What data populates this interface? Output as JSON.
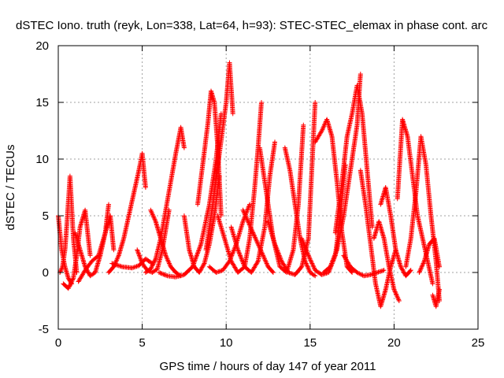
{
  "chart_data": {
    "type": "scatter",
    "title": "dSTEC Iono. truth (reyk, Lon=338, Lat=64, h=93): STEC-STEC_elemax in phase cont. arc",
    "xlabel": "GPS time / hours of day 147 of year 2011",
    "ylabel": "dSTEC  / TECUs",
    "xlim": [
      0,
      25
    ],
    "ylim": [
      -5,
      20
    ],
    "xticks": [
      "0",
      "5",
      "10",
      "15",
      "20",
      "25"
    ],
    "yticks": [
      "-5",
      "0",
      "5",
      "10",
      "15",
      "20"
    ],
    "grid": true,
    "marker": "+",
    "color": "#ff0000",
    "series": [
      {
        "x": [
          0.0,
          0.2,
          0.4,
          0.6,
          0.8
        ],
        "y": [
          5.0,
          2.0,
          0.5,
          -0.5,
          -1.0
        ]
      },
      {
        "x": [
          0.1,
          0.25,
          0.4,
          0.5,
          0.7,
          0.9,
          1.1
        ],
        "y": [
          0.0,
          0.5,
          2.0,
          4.0,
          8.5,
          3.0,
          0.0
        ]
      },
      {
        "x": [
          0.3,
          0.6,
          0.9,
          1.1,
          1.3,
          1.6,
          1.9
        ],
        "y": [
          -1.0,
          -1.4,
          -0.5,
          1.5,
          4.0,
          5.5,
          1.5
        ]
      },
      {
        "x": [
          1.0,
          1.3,
          1.6,
          1.9,
          2.2,
          2.5,
          2.8,
          3.0
        ],
        "y": [
          3.5,
          2.0,
          0.5,
          -0.3,
          0.0,
          1.5,
          3.5,
          6.0
        ]
      },
      {
        "x": [
          1.2,
          1.6,
          2.0,
          2.4,
          2.8,
          3.1,
          3.3
        ],
        "y": [
          -0.8,
          0.2,
          1.0,
          1.5,
          3.5,
          5.0,
          2.0
        ]
      },
      {
        "x": [
          3.0,
          3.3,
          3.6,
          3.9,
          4.2,
          4.5,
          4.8,
          5.0,
          5.2
        ],
        "y": [
          0.0,
          0.5,
          1.5,
          3.0,
          5.0,
          7.0,
          9.0,
          10.5,
          7.5
        ]
      },
      {
        "x": [
          3.2,
          3.8,
          4.4,
          4.8,
          5.2,
          5.6
        ],
        "y": [
          0.8,
          0.5,
          0.4,
          0.6,
          1.2,
          0.8
        ]
      },
      {
        "x": [
          4.7,
          5.0,
          5.3,
          5.6,
          5.9,
          6.2,
          6.6
        ],
        "y": [
          2.0,
          0.8,
          0.2,
          0.0,
          0.3,
          2.0,
          5.5
        ]
      },
      {
        "x": [
          5.2,
          5.5,
          5.8,
          6.1,
          6.4,
          6.7,
          7.0,
          7.3,
          7.5
        ],
        "y": [
          0.0,
          0.3,
          1.2,
          3.0,
          5.5,
          8.0,
          10.5,
          12.8,
          11.0
        ]
      },
      {
        "x": [
          5.5,
          5.8,
          6.1,
          6.4,
          6.7,
          7.0,
          7.3
        ],
        "y": [
          5.5,
          4.5,
          3.0,
          1.5,
          0.5,
          0.0,
          -0.3
        ]
      },
      {
        "x": [
          6.0,
          6.5,
          7.0,
          7.5,
          8.0,
          8.5,
          9.0,
          9.4,
          9.7
        ],
        "y": [
          0.0,
          -0.3,
          -0.4,
          -0.2,
          0.5,
          2.5,
          6.0,
          10.0,
          14.0
        ]
      },
      {
        "x": [
          7.5,
          7.8,
          8.1,
          8.4,
          8.7,
          9.0,
          9.3,
          9.6
        ],
        "y": [
          5.0,
          2.0,
          0.5,
          0.0,
          0.8,
          2.5,
          5.0,
          8.5
        ]
      },
      {
        "x": [
          8.3,
          8.6,
          8.9,
          9.1,
          9.3,
          9.5,
          9.7
        ],
        "y": [
          6.0,
          9.5,
          13.0,
          16.0,
          15.0,
          11.0,
          5.0
        ]
      },
      {
        "x": [
          8.8,
          9.2,
          9.6,
          10.0,
          10.2,
          10.4
        ],
        "y": [
          2.0,
          6.0,
          10.5,
          15.0,
          18.5,
          14.0
        ]
      },
      {
        "x": [
          9.0,
          9.4,
          9.8,
          10.2,
          10.6,
          11.0,
          11.4
        ],
        "y": [
          0.5,
          0.0,
          0.2,
          1.0,
          2.5,
          4.5,
          6.0
        ]
      },
      {
        "x": [
          9.5,
          9.9,
          10.3,
          10.7,
          11.1,
          11.4,
          11.7,
          11.9,
          12.1
        ],
        "y": [
          5.0,
          3.0,
          1.0,
          0.0,
          0.5,
          3.0,
          7.5,
          11.0,
          15.0
        ]
      },
      {
        "x": [
          10.3,
          10.7,
          11.1,
          11.5,
          11.9,
          12.3,
          12.6,
          12.9
        ],
        "y": [
          4.0,
          2.0,
          0.5,
          0.0,
          1.0,
          4.0,
          8.5,
          11.5
        ]
      },
      {
        "x": [
          11.0,
          11.3,
          11.6,
          11.9,
          12.2,
          12.5,
          12.8
        ],
        "y": [
          5.5,
          4.5,
          3.5,
          2.5,
          1.5,
          0.5,
          0.0
        ]
      },
      {
        "x": [
          12.0,
          12.4,
          12.8,
          13.2,
          13.6,
          14.0,
          14.3,
          14.6
        ],
        "y": [
          11.0,
          7.0,
          3.0,
          0.5,
          0.0,
          2.0,
          6.0,
          13.0
        ]
      },
      {
        "x": [
          12.5,
          12.9,
          13.3,
          13.7,
          14.1,
          14.5,
          14.9,
          15.3
        ],
        "y": [
          4.5,
          2.5,
          1.0,
          0.0,
          -0.2,
          0.5,
          3.0,
          15.0
        ]
      },
      {
        "x": [
          13.5,
          13.8,
          14.1,
          14.4,
          14.7,
          15.0,
          15.3
        ],
        "y": [
          11.0,
          9.0,
          6.0,
          3.0,
          1.0,
          0.0,
          -0.3
        ]
      },
      {
        "x": [
          14.5,
          14.9,
          15.3,
          15.7,
          16.1,
          16.5,
          16.8,
          17.1
        ],
        "y": [
          3.0,
          1.5,
          0.2,
          -0.2,
          0.0,
          1.5,
          5.0,
          9.5
        ]
      },
      {
        "x": [
          15.3,
          15.7,
          16.0,
          16.3,
          16.6,
          16.9,
          17.2,
          17.5
        ],
        "y": [
          11.5,
          12.5,
          13.5,
          12.0,
          8.0,
          3.5,
          0.5,
          0.0
        ]
      },
      {
        "x": [
          15.8,
          16.2,
          16.6,
          17.0,
          17.4,
          17.8,
          18.0
        ],
        "y": [
          0.0,
          0.5,
          2.0,
          5.0,
          9.0,
          13.0,
          17.5
        ]
      },
      {
        "x": [
          16.5,
          16.9,
          17.2,
          17.5,
          17.8,
          18.1,
          18.4,
          18.7
        ],
        "y": [
          3.5,
          8.0,
          12.0,
          14.0,
          16.5,
          14.0,
          9.0,
          4.0
        ]
      },
      {
        "x": [
          17.0,
          17.4,
          17.8,
          18.2,
          18.6,
          19.0,
          19.4
        ],
        "y": [
          1.5,
          0.5,
          0.0,
          -0.3,
          -0.2,
          0.0,
          0.2
        ]
      },
      {
        "x": [
          18.0,
          18.3,
          18.6,
          18.9,
          19.2,
          19.5,
          19.8,
          20.1
        ],
        "y": [
          9.0,
          6.0,
          2.5,
          -1.0,
          -3.0,
          -1.5,
          0.5,
          2.0
        ]
      },
      {
        "x": [
          18.8,
          19.1,
          19.4,
          19.7,
          20.0,
          20.3
        ],
        "y": [
          3.0,
          4.5,
          3.0,
          0.5,
          -1.5,
          -2.5
        ]
      },
      {
        "x": [
          19.2,
          19.5,
          19.8,
          20.1,
          20.4,
          20.7,
          21.0
        ],
        "y": [
          6.0,
          7.5,
          5.0,
          2.0,
          0.5,
          -0.3,
          0.2
        ]
      },
      {
        "x": [
          20.2,
          20.5,
          20.8,
          21.1,
          21.4,
          21.7,
          22.0,
          22.3
        ],
        "y": [
          6.5,
          13.5,
          12.0,
          8.5,
          5.0,
          3.0,
          1.0,
          -1.0
        ]
      },
      {
        "x": [
          20.7,
          21.0,
          21.3,
          21.6,
          21.9,
          22.2,
          22.5,
          22.7
        ],
        "y": [
          0.5,
          3.0,
          7.0,
          12.0,
          9.5,
          5.0,
          1.0,
          -2.5
        ]
      },
      {
        "x": [
          21.5,
          21.8,
          22.1,
          22.4,
          22.7
        ],
        "y": [
          0.0,
          1.0,
          2.5,
          3.0,
          0.5
        ]
      },
      {
        "x": [
          22.3,
          22.5,
          22.7
        ],
        "y": [
          -2.0,
          -3.0,
          -1.5
        ]
      }
    ]
  }
}
